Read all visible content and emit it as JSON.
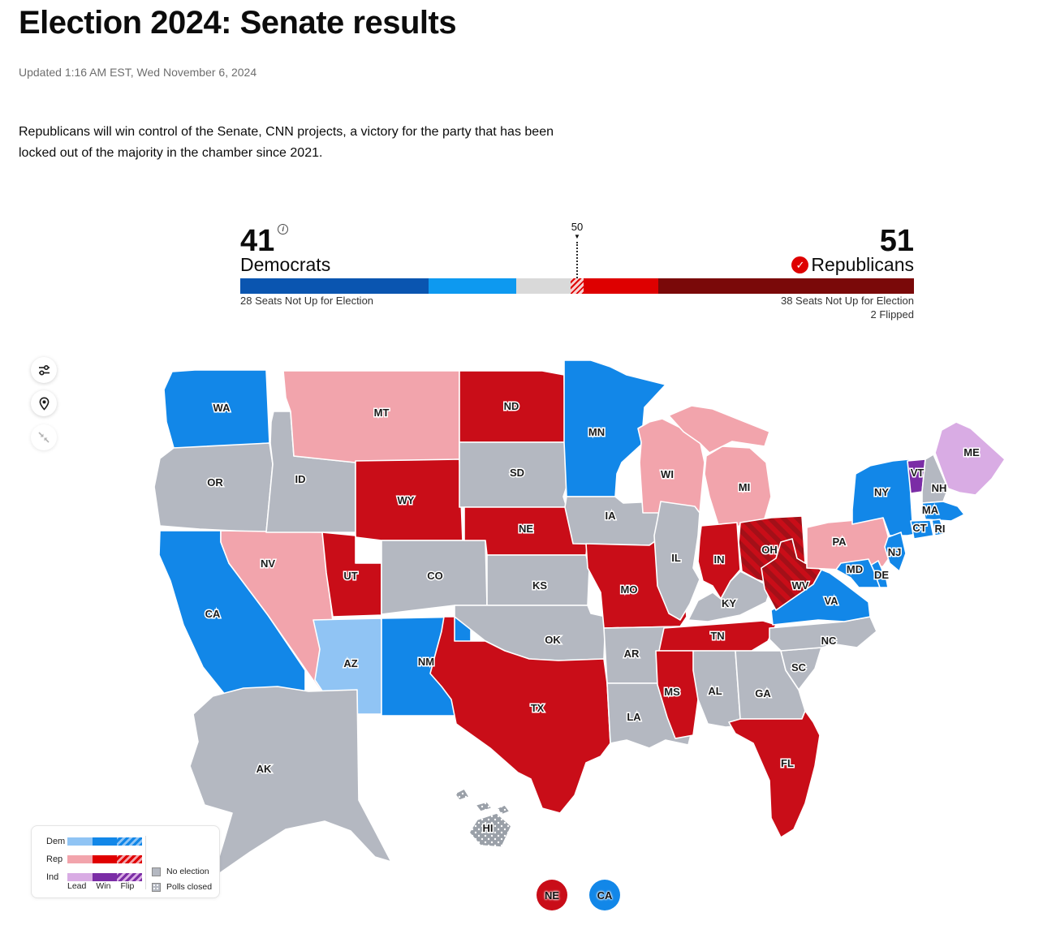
{
  "page": {
    "title": "Election 2024: Senate results",
    "updated": "Updated 1:16 AM EST, Wed November 6, 2024",
    "description": "Republicans will win control of the Senate, CNN projects, a victory for the party that has been locked out of the majority in the chamber since 2021."
  },
  "balance_of_power": {
    "dem": {
      "count": "41",
      "label": "Democrats",
      "note": "28 Seats Not Up for Election"
    },
    "rep": {
      "count": "51",
      "label": "Republicans",
      "note": "38 Seats Not Up for Election",
      "flipped": "2 Flipped"
    },
    "majority_marker": "50",
    "marker_arrow": "▼",
    "info_glyph": "i",
    "check_glyph": "✓",
    "segments": [
      {
        "name": "dem-not-up",
        "seats": 28,
        "color": "#0a55b0"
      },
      {
        "name": "dem-won",
        "seats": 13,
        "color": "#0d99f0"
      },
      {
        "name": "undecided",
        "seats": 8,
        "color": "#d9d9d9"
      },
      {
        "name": "rep-leading",
        "seats": 2,
        "color": "hatch"
      },
      {
        "name": "rep-won",
        "seats": 11,
        "color": "#de0000"
      },
      {
        "name": "rep-not-up",
        "seats": 38,
        "color": "#7a0909"
      }
    ]
  },
  "map": {
    "status_colors": {
      "dem-win": "#1287e8",
      "dem-lead": "#90c4f4",
      "rep-win": "#c90d18",
      "rep-lead": "#f2a4ac",
      "rep-flip": "flip-rep",
      "ind-win": "#7b2da6",
      "ind-lead": "#d9ace4",
      "no-election": "#b4b8c1",
      "polls-closed": "polls-closed"
    },
    "flip_stripe_color": "#a31018",
    "states": [
      {
        "abbr": "WA",
        "status": "dem-win"
      },
      {
        "abbr": "OR",
        "status": "no-election"
      },
      {
        "abbr": "CA",
        "status": "dem-win"
      },
      {
        "abbr": "NV",
        "status": "rep-lead"
      },
      {
        "abbr": "ID",
        "status": "no-election"
      },
      {
        "abbr": "MT",
        "status": "rep-lead"
      },
      {
        "abbr": "WY",
        "status": "rep-win"
      },
      {
        "abbr": "UT",
        "status": "rep-win"
      },
      {
        "abbr": "AZ",
        "status": "dem-lead"
      },
      {
        "abbr": "NM",
        "status": "dem-win"
      },
      {
        "abbr": "CO",
        "status": "no-election"
      },
      {
        "abbr": "ND",
        "status": "rep-win"
      },
      {
        "abbr": "SD",
        "status": "no-election"
      },
      {
        "abbr": "NE",
        "status": "rep-win"
      },
      {
        "abbr": "KS",
        "status": "no-election"
      },
      {
        "abbr": "OK",
        "status": "no-election"
      },
      {
        "abbr": "TX",
        "status": "rep-win"
      },
      {
        "abbr": "MN",
        "status": "dem-win"
      },
      {
        "abbr": "IA",
        "status": "no-election"
      },
      {
        "abbr": "MO",
        "status": "rep-win"
      },
      {
        "abbr": "AR",
        "status": "no-election"
      },
      {
        "abbr": "LA",
        "status": "no-election"
      },
      {
        "abbr": "WI",
        "status": "rep-lead"
      },
      {
        "abbr": "MI",
        "status": "rep-lead"
      },
      {
        "abbr": "IL",
        "status": "no-election"
      },
      {
        "abbr": "IN",
        "status": "rep-win"
      },
      {
        "abbr": "OH",
        "status": "rep-flip"
      },
      {
        "abbr": "KY",
        "status": "no-election"
      },
      {
        "abbr": "TN",
        "status": "rep-win"
      },
      {
        "abbr": "MS",
        "status": "rep-win"
      },
      {
        "abbr": "AL",
        "status": "no-election"
      },
      {
        "abbr": "GA",
        "status": "no-election"
      },
      {
        "abbr": "FL",
        "status": "rep-win"
      },
      {
        "abbr": "SC",
        "status": "no-election"
      },
      {
        "abbr": "NC",
        "status": "no-election"
      },
      {
        "abbr": "VA",
        "status": "dem-win"
      },
      {
        "abbr": "WV",
        "status": "rep-flip"
      },
      {
        "abbr": "PA",
        "status": "rep-lead"
      },
      {
        "abbr": "NY",
        "status": "dem-win"
      },
      {
        "abbr": "NJ",
        "status": "dem-win"
      },
      {
        "abbr": "DE",
        "status": "dem-win"
      },
      {
        "abbr": "MD",
        "status": "dem-win"
      },
      {
        "abbr": "VT",
        "status": "ind-win"
      },
      {
        "abbr": "NH",
        "status": "no-election"
      },
      {
        "abbr": "ME",
        "status": "ind-lead"
      },
      {
        "abbr": "MA",
        "status": "dem-win"
      },
      {
        "abbr": "CT",
        "status": "dem-win"
      },
      {
        "abbr": "RI",
        "status": "dem-win"
      },
      {
        "abbr": "AK",
        "status": "no-election"
      },
      {
        "abbr": "HI",
        "status": "polls-closed"
      }
    ],
    "legend": {
      "rows": [
        {
          "label": "Dem",
          "lead": "#90c4f4",
          "win": "#1287e8"
        },
        {
          "label": "Rep",
          "lead": "#f2a4ac",
          "win": "#e00000"
        },
        {
          "label": "Ind",
          "lead": "#d9ace4",
          "win": "#7b2da6"
        }
      ],
      "scale_labels": [
        "Lead",
        "Win",
        "Flip"
      ],
      "no_election_label": "No election",
      "polls_closed_label": "Polls closed"
    },
    "badges": [
      {
        "label": "NE",
        "color": "#c90d18"
      },
      {
        "label": "CA",
        "color": "#1287e8"
      }
    ]
  }
}
